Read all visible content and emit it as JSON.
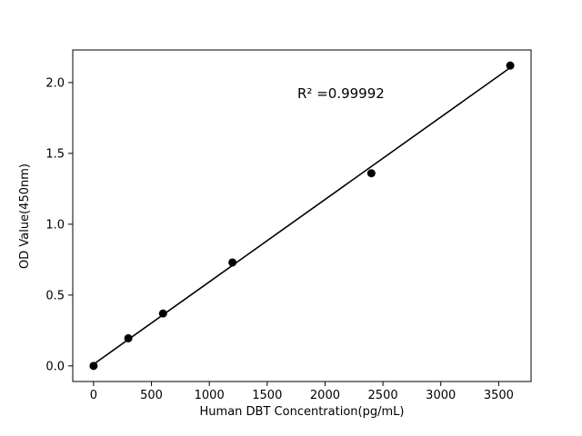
{
  "chart_data": {
    "type": "scatter",
    "title": "",
    "xlabel": "Human DBT Concentration(pg/mL)",
    "ylabel": "OD Value(450nm)",
    "annotation": "R² =0.99992",
    "x": [
      0,
      300,
      600,
      1200,
      2400,
      3600
    ],
    "y": [
      0.0,
      0.195,
      0.37,
      0.73,
      1.36,
      2.12
    ],
    "fit_line": {
      "x": [
        0,
        3600
      ],
      "y": [
        0.012,
        2.105
      ]
    },
    "xlim": [
      -180,
      3780
    ],
    "ylim": [
      -0.11,
      2.23
    ],
    "xticks": [
      0,
      500,
      1000,
      1500,
      2000,
      2500,
      3000,
      3500
    ],
    "xtick_labels": [
      "0",
      "500",
      "1000",
      "1500",
      "2000",
      "2500",
      "3000",
      "3500"
    ],
    "yticks": [
      0.0,
      0.5,
      1.0,
      1.5,
      2.0
    ],
    "ytick_labels": [
      "0.0",
      "0.5",
      "1.0",
      "1.5",
      "2.0"
    ],
    "grid": false,
    "legend": null,
    "marker_color": "#000000",
    "line_color": "#000000",
    "axis_color": "#000000",
    "background": "#ffffff"
  }
}
